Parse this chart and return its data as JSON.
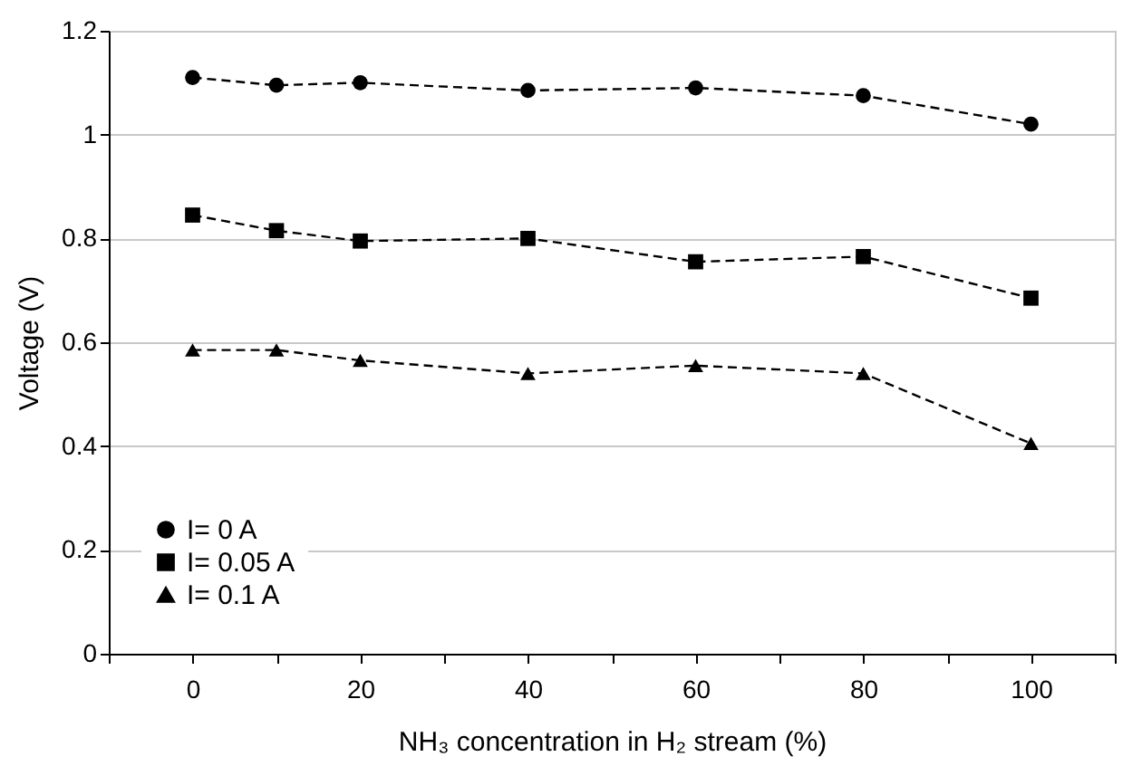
{
  "chart_data": {
    "type": "line",
    "xlabel": "NH₃ concentration in H₂ stream (%)",
    "ylabel": "Voltage (V)",
    "x": [
      0,
      10,
      20,
      40,
      60,
      80,
      100
    ],
    "series": [
      {
        "name": "I= 0 A",
        "color": "#000000",
        "marker": "circle",
        "values": [
          1.11,
          1.095,
          1.1,
          1.085,
          1.09,
          1.075,
          1.02
        ]
      },
      {
        "name": "I= 0.05 A",
        "color": "#000000",
        "marker": "square",
        "values": [
          0.845,
          0.815,
          0.795,
          0.8,
          0.755,
          0.765,
          0.685
        ]
      },
      {
        "name": "I= 0.1 A",
        "color": "#000000",
        "marker": "triangle",
        "values": [
          0.585,
          0.585,
          0.565,
          0.54,
          0.555,
          0.54,
          0.405
        ]
      }
    ],
    "line_style": "dashed",
    "xlim": [
      -10,
      110
    ],
    "xticks": [
      {
        "value": -10,
        "label": null
      },
      0,
      {
        "value": 10,
        "label": null
      },
      20,
      {
        "value": 30,
        "label": null
      },
      40,
      {
        "value": 50,
        "label": null
      },
      60,
      {
        "value": 70,
        "label": null
      },
      80,
      {
        "value": 90,
        "label": null
      },
      100,
      {
        "value": 110,
        "label": null
      }
    ],
    "ylim": [
      0,
      1.2
    ],
    "yticks": [
      0,
      0.2,
      0.4,
      0.6,
      0.8,
      1,
      1.2
    ],
    "grid": "y",
    "legend": "bottom left"
  }
}
